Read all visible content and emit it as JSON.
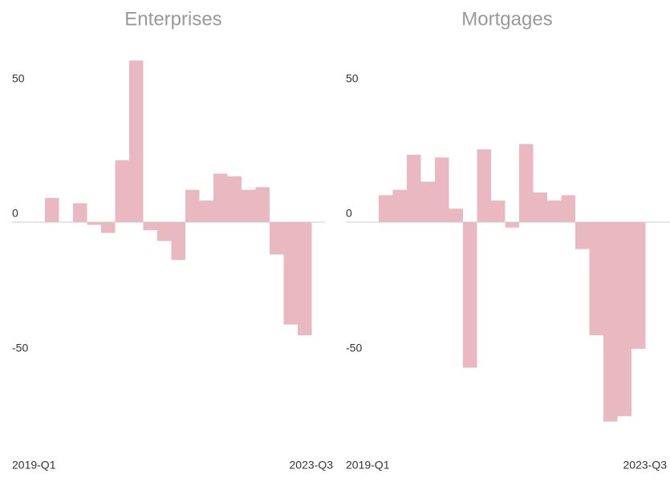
{
  "chart_data": [
    {
      "type": "bar",
      "title": "Enterprises",
      "categories": [
        "2019-Q1",
        null,
        null,
        null,
        null,
        null,
        null,
        null,
        null,
        null,
        null,
        null,
        null,
        null,
        null,
        null,
        null,
        null,
        "2023-Q3"
      ],
      "values": [
        9,
        0,
        7,
        -1,
        -4,
        23,
        60,
        -3,
        -7,
        -14,
        12,
        8,
        18,
        17,
        12,
        13,
        -12,
        -38,
        -42
      ],
      "color": "#eab8c1",
      "ylim": [
        -80,
        65
      ],
      "yticks": [
        -50,
        0,
        50
      ]
    },
    {
      "type": "bar",
      "title": "Mortgages",
      "categories": [
        "2019-Q1",
        null,
        null,
        null,
        null,
        null,
        null,
        null,
        null,
        null,
        null,
        null,
        null,
        null,
        null,
        null,
        null,
        null,
        "2023-Q3"
      ],
      "values": [
        10,
        12,
        25,
        15,
        24,
        5,
        -54,
        27,
        8,
        -2,
        29,
        11,
        8,
        10,
        -10,
        -42,
        -74,
        -72,
        -47
      ],
      "color": "#eab8c1",
      "ylim": [
        -80,
        65
      ],
      "yticks": [
        -50,
        0,
        50
      ]
    }
  ]
}
